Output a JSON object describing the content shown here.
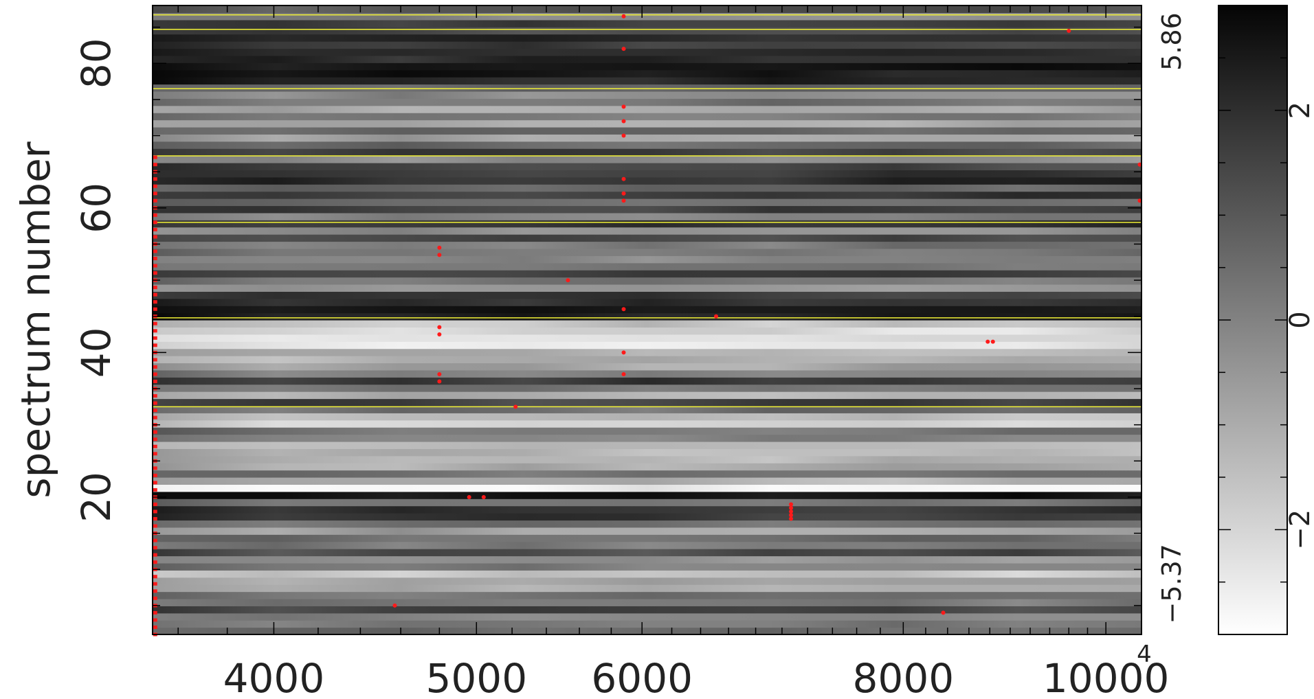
{
  "chart_data": {
    "type": "heatmap",
    "title": "",
    "xlabel": "",
    "ylabel": "spectrum number",
    "xscale": "log",
    "xlim": [
      3500,
      10400
    ],
    "ylim": [
      1,
      88
    ],
    "x_ticks": [
      {
        "value": 4000,
        "label": "4000"
      },
      {
        "value": 5000,
        "label": "5000"
      },
      {
        "value": 6000,
        "label": "6000"
      },
      {
        "value": 8000,
        "label": "8000"
      },
      {
        "value": 10000,
        "label": "10000"
      }
    ],
    "x_corner_label": "4",
    "y_ticks": [
      {
        "value": 20,
        "label": "20"
      },
      {
        "value": 40,
        "label": "40"
      },
      {
        "value": 60,
        "label": "60"
      },
      {
        "value": 80,
        "label": "80"
      }
    ],
    "right_labels": [
      {
        "value": 83,
        "label": "5.86"
      },
      {
        "value": 8,
        "label": "−5.37"
      }
    ],
    "colorbar": {
      "colormap": "grayscale (white = low, black = high)",
      "range": [
        -3,
        3
      ],
      "ticks": [
        {
          "value": 2,
          "label": "2"
        },
        {
          "value": 0,
          "label": "0"
        },
        {
          "value": -2,
          "label": "−2"
        }
      ]
    },
    "yellow_lines": [
      32.5,
      44.8,
      58,
      67.2,
      76.5,
      84.7,
      86.7
    ],
    "red_markers": [
      {
        "x": 4800,
        "y": 54.5
      },
      {
        "x": 4800,
        "y": 53.5
      },
      {
        "x": 4800,
        "y": 43.5
      },
      {
        "x": 4800,
        "y": 42.5
      },
      {
        "x": 4800,
        "y": 37
      },
      {
        "x": 4800,
        "y": 36
      },
      {
        "x": 4960,
        "y": 20
      },
      {
        "x": 5040,
        "y": 20
      },
      {
        "x": 5220,
        "y": 32.5
      },
      {
        "x": 5530,
        "y": 50
      },
      {
        "x": 4570,
        "y": 5
      },
      {
        "x": 5880,
        "y": 86.5
      },
      {
        "x": 5880,
        "y": 82
      },
      {
        "x": 5880,
        "y": 74
      },
      {
        "x": 5880,
        "y": 72
      },
      {
        "x": 5880,
        "y": 70
      },
      {
        "x": 5880,
        "y": 64
      },
      {
        "x": 5880,
        "y": 62
      },
      {
        "x": 5880,
        "y": 61
      },
      {
        "x": 5880,
        "y": 46
      },
      {
        "x": 5880,
        "y": 40
      },
      {
        "x": 5880,
        "y": 37
      },
      {
        "x": 6510,
        "y": 45
      },
      {
        "x": 7070,
        "y": 19
      },
      {
        "x": 7070,
        "y": 18.5
      },
      {
        "x": 7070,
        "y": 18
      },
      {
        "x": 7070,
        "y": 17.5
      },
      {
        "x": 7070,
        "y": 17
      },
      {
        "x": 8360,
        "y": 4
      },
      {
        "x": 8780,
        "y": 41.5
      },
      {
        "x": 8830,
        "y": 41.5
      },
      {
        "x": 9600,
        "y": 84.5
      },
      {
        "x": 10380,
        "y": 66
      },
      {
        "x": 10380,
        "y": 61
      }
    ],
    "red_edge_column": {
      "x": 3510,
      "y_from": 1,
      "y_to": 67
    },
    "legend": "none",
    "grid": false
  }
}
